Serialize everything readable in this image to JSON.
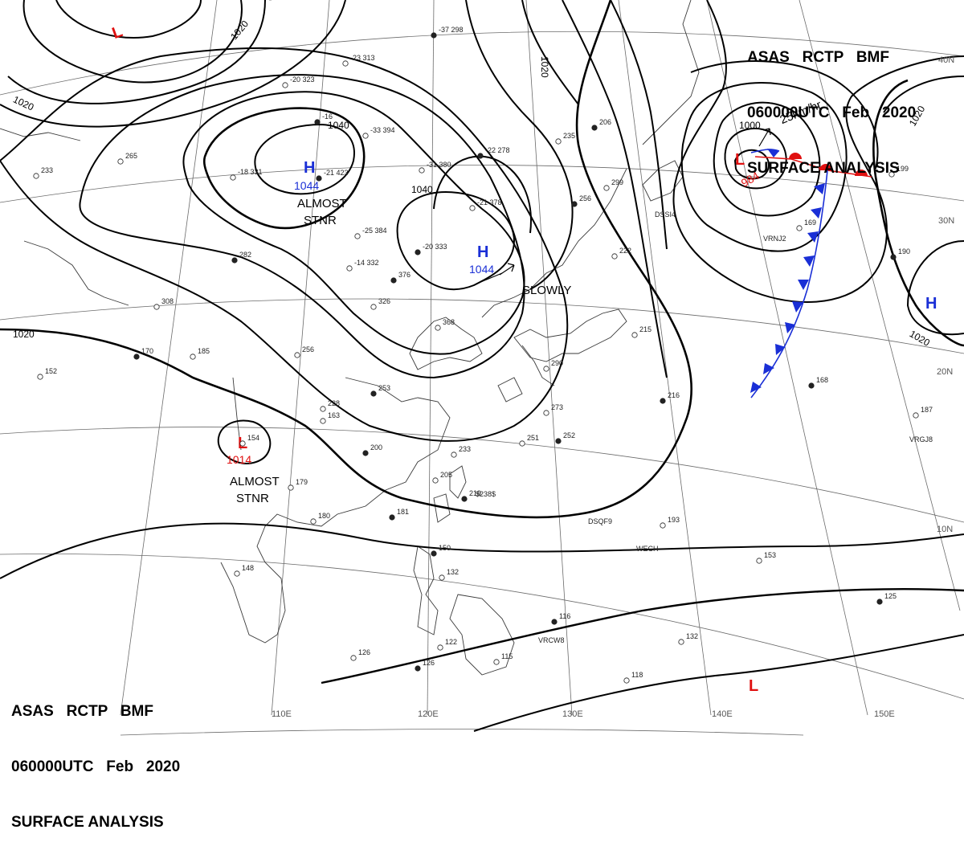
{
  "header": {
    "line1": "ASAS   RCTP   BMF",
    "line2": "060000UTC   Feb   2020",
    "line3": "SURFACE ANALYSIS"
  },
  "colors": {
    "high": "#1a2fd6",
    "low": "#e01010",
    "warm_front": "#e01010",
    "cold_front": "#1a2fd6",
    "isobar": "#000000",
    "grid": "#6b6b6b",
    "coast": "#3a3a3a"
  },
  "pressure_centers": [
    {
      "type": "H",
      "value": "1044",
      "note": "ALMOST STNR"
    },
    {
      "type": "H",
      "value": "1044",
      "note": "SLOWLY"
    },
    {
      "type": "H",
      "value": ""
    },
    {
      "type": "L",
      "value": "984",
      "note": "25km/hr"
    },
    {
      "type": "L",
      "value": "1014",
      "note": "ALMOST STNR"
    },
    {
      "type": "L",
      "value": ""
    },
    {
      "type": "L",
      "value": ""
    }
  ],
  "isobar_labels": [
    "1020",
    "1020",
    "1040",
    "1040",
    "1020",
    "1000",
    "1020",
    "1020",
    "1020"
  ],
  "motion": {
    "slowly": "SLOWLY",
    "almost_stnr_1": "ALMOST",
    "almost_stnr_2": "STNR",
    "speed": "25km/hr"
  },
  "longitudes": [
    "110E",
    "120E",
    "130E",
    "140E",
    "150E"
  ],
  "latitudes": [
    "40N",
    "30N",
    "20N",
    "10N"
  ],
  "station_numbers": [
    "-37 298",
    "-23 313",
    "-20 323",
    "-16",
    "-33 394",
    "-18 331",
    "-21 423",
    "-25 384",
    "-14 332",
    "-20 333",
    "-21 378",
    "-31 380",
    "-22 278",
    "265",
    "233",
    "282",
    "308",
    "185",
    "170",
    "152",
    "256",
    "376",
    "326",
    "368",
    "253",
    "228",
    "163",
    "200",
    "179",
    "180",
    "181",
    "233",
    "205",
    "219",
    "148",
    "126",
    "150",
    "132",
    "122",
    "126",
    "115",
    "215",
    "216",
    "273",
    "251",
    "252",
    "290",
    "299",
    "256",
    "222",
    "169",
    "190",
    "199",
    "187",
    "168",
    "193",
    "153",
    "125",
    "132",
    "118",
    "116",
    "154",
    "235",
    "206"
  ],
  "ship_ids": [
    "DSQF9",
    "WECH",
    "VRCW8",
    "VRGJ8",
    "VRNJ2",
    "DSSI4"
  ],
  "misc": {
    "s238": "$238$"
  }
}
